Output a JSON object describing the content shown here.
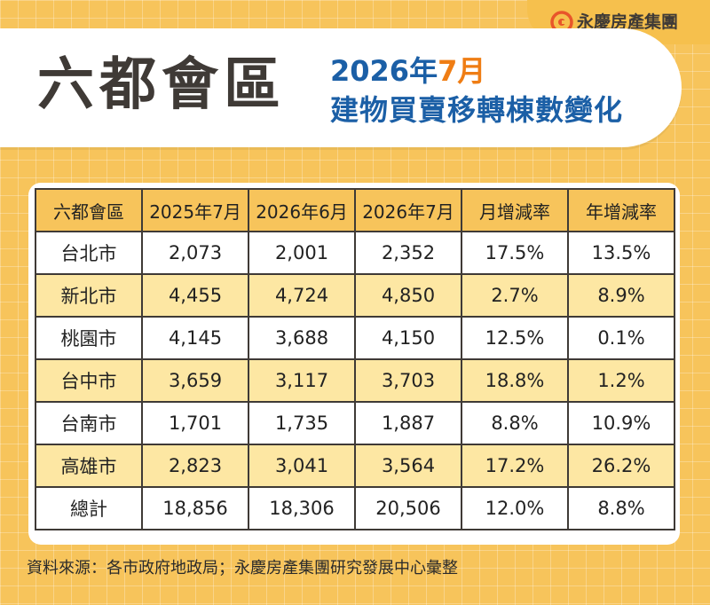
{
  "header": {
    "title": "六都會區",
    "subtitle_year": "2026年",
    "subtitle_month": "7月",
    "subtitle_line2": "建物買賣移轉棟數變化"
  },
  "brand": {
    "name": "永慶房產集團",
    "logo_icon": "yungching-logo-icon",
    "accent_color": "#ef7d14"
  },
  "table": {
    "columns": [
      "六都會區",
      "2025年7月",
      "2026年6月",
      "2026年7月",
      "月增減率",
      "年增減率"
    ],
    "rows": [
      [
        "台北市",
        "2,073",
        "2,001",
        "2,352",
        "17.5%",
        "13.5%"
      ],
      [
        "新北市",
        "4,455",
        "4,724",
        "4,850",
        "2.7%",
        "8.9%"
      ],
      [
        "桃園市",
        "4,145",
        "3,688",
        "4,150",
        "12.5%",
        "0.1%"
      ],
      [
        "台中市",
        "3,659",
        "3,117",
        "3,703",
        "18.8%",
        "1.2%"
      ],
      [
        "台南市",
        "1,701",
        "1,735",
        "1,887",
        "8.8%",
        "10.9%"
      ],
      [
        "高雄市",
        "2,823",
        "3,041",
        "3,564",
        "17.2%",
        "26.2%"
      ],
      [
        "總計",
        "18,856",
        "18,306",
        "20,506",
        "12.0%",
        "8.8%"
      ]
    ]
  },
  "footer": {
    "source": "資料來源：各市政府地政局；永慶房產集團研究發展中心彙整"
  },
  "colors": {
    "background": "#f7c45b",
    "title_blue": "#1b5fa6",
    "row_highlight": "#fde7a3",
    "text_dark": "#3f3a36"
  }
}
